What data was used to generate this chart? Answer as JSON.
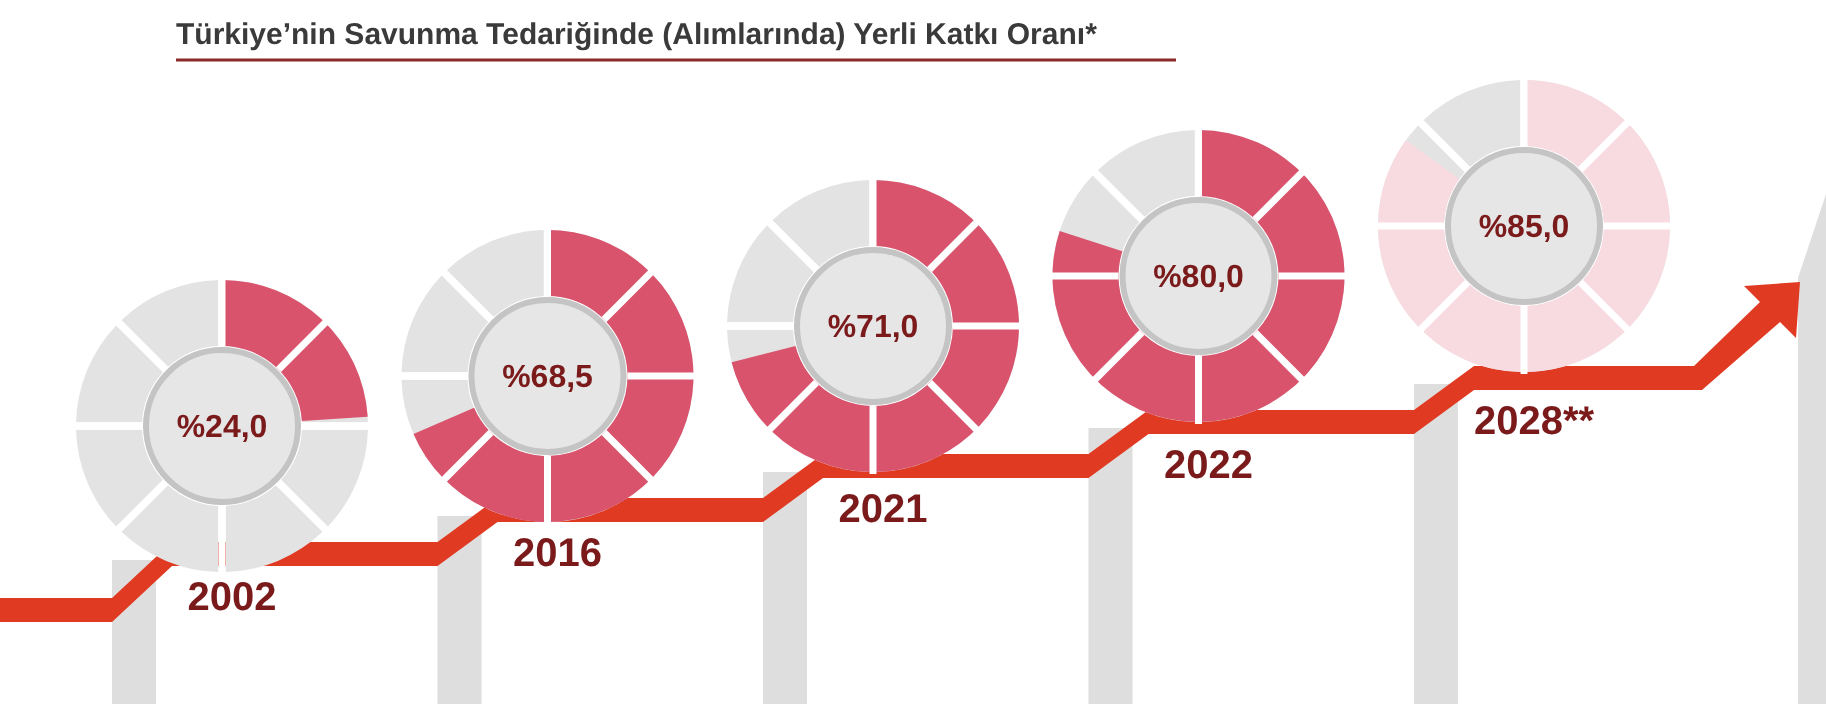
{
  "chart_data": {
    "type": "other",
    "title": "Türkiye’nin Savunma Tedariğinde (Alımlarında) Yerli Katkı Oranı*",
    "categories": [
      "2002",
      "2016",
      "2021",
      "2022",
      "2028**"
    ],
    "values": [
      24.0,
      68.5,
      71.0,
      80.0,
      85.0
    ],
    "value_labels": [
      "%24,0",
      "%68,5",
      "%71,0",
      "%80,0",
      "%85,0"
    ],
    "colors": [
      "#d9536d",
      "#d9536d",
      "#d9536d",
      "#d9536d",
      "#f8dbe1"
    ]
  }
}
